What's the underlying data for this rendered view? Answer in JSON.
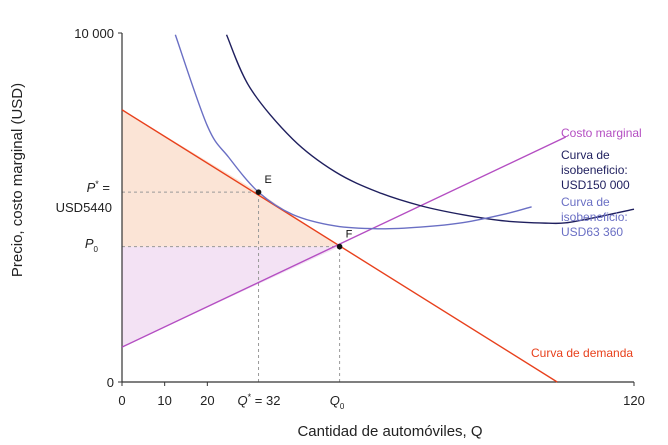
{
  "chart_data": {
    "type": "line",
    "xlabel": "Cantidad de automóviles, Q",
    "ylabel": "Precio, costo marginal (USD)",
    "xlim": [
      0,
      120
    ],
    "ylim": [
      0,
      10000
    ],
    "x_ticks": [
      {
        "value": 0,
        "label": "0"
      },
      {
        "value": 10,
        "label": "10"
      },
      {
        "value": 20,
        "label": "20"
      },
      {
        "value": 120,
        "label": "120"
      }
    ],
    "y_ticks": [
      {
        "value": 0,
        "label": "0"
      },
      {
        "value": 10000,
        "label": "10 000"
      }
    ],
    "series": [
      {
        "name": "Curva de demanda",
        "color": "#e8401c",
        "points": [
          [
            0,
            7800
          ],
          [
            102,
            0
          ]
        ]
      },
      {
        "name": "Costo marginal",
        "color": "#b44ec2",
        "points": [
          [
            0,
            1000
          ],
          [
            104,
            7020
          ]
        ]
      },
      {
        "name": "Curva de isobeneficio: USD150 000",
        "color": "#1f1f5e",
        "points": [
          [
            24.5,
            9950
          ],
          [
            30,
            8430
          ],
          [
            40,
            6960
          ],
          [
            50,
            6020
          ],
          [
            60,
            5440
          ],
          [
            70,
            5050
          ],
          [
            80,
            4790
          ],
          [
            90,
            4610
          ],
          [
            100,
            4550
          ],
          [
            104,
            4560
          ],
          [
            110,
            4690
          ],
          [
            120,
            4950
          ]
        ]
      },
      {
        "name": "Curva de isobeneficio: USD63 360",
        "color": "#6a6fc4",
        "points": [
          [
            12.5,
            9950
          ],
          [
            20,
            7340
          ],
          [
            25,
            6440
          ],
          [
            32,
            5440
          ],
          [
            40,
            4800
          ],
          [
            50,
            4470
          ],
          [
            60,
            4390
          ],
          [
            70,
            4440
          ],
          [
            80,
            4570
          ],
          [
            90,
            4820
          ],
          [
            96,
            5020
          ]
        ]
      }
    ],
    "points": [
      {
        "label": "E",
        "x": 32,
        "y": 5440
      },
      {
        "label": "F",
        "x": 51,
        "y": 3880
      }
    ],
    "shaded_regions": [
      {
        "name": "consumer-surplus",
        "color": "#fbe4d6",
        "polygon": [
          [
            0,
            7800
          ],
          [
            0,
            3880
          ],
          [
            51,
            3880
          ],
          [
            32,
            5440
          ]
        ]
      },
      {
        "name": "producer-surplus",
        "color": "#f3e2f4",
        "polygon": [
          [
            0,
            3880
          ],
          [
            51,
            3880
          ],
          [
            0,
            1000
          ]
        ]
      }
    ],
    "guides": [
      {
        "from": [
          0,
          5440
        ],
        "to": [
          32,
          5440
        ]
      },
      {
        "from": [
          32,
          0
        ],
        "to": [
          32,
          5440
        ]
      },
      {
        "from": [
          0,
          3880
        ],
        "to": [
          51,
          3880
        ]
      },
      {
        "from": [
          51,
          0
        ],
        "to": [
          51,
          3880
        ]
      }
    ],
    "annotations": {
      "p_star_line1": "P* =",
      "p_star_line2": "USD5440",
      "p_zero": "P0",
      "q_star": "Q* = 32",
      "q_zero": "Q0"
    },
    "legend_labels": {
      "mc": "Costo marginal",
      "iso150_lines": [
        "Curva de",
        "isobeneficio:",
        "USD150 000"
      ],
      "iso63_lines": [
        "Curva de",
        "isobeneficio:",
        "USD63 360"
      ],
      "demand": "Curva de demanda"
    }
  }
}
